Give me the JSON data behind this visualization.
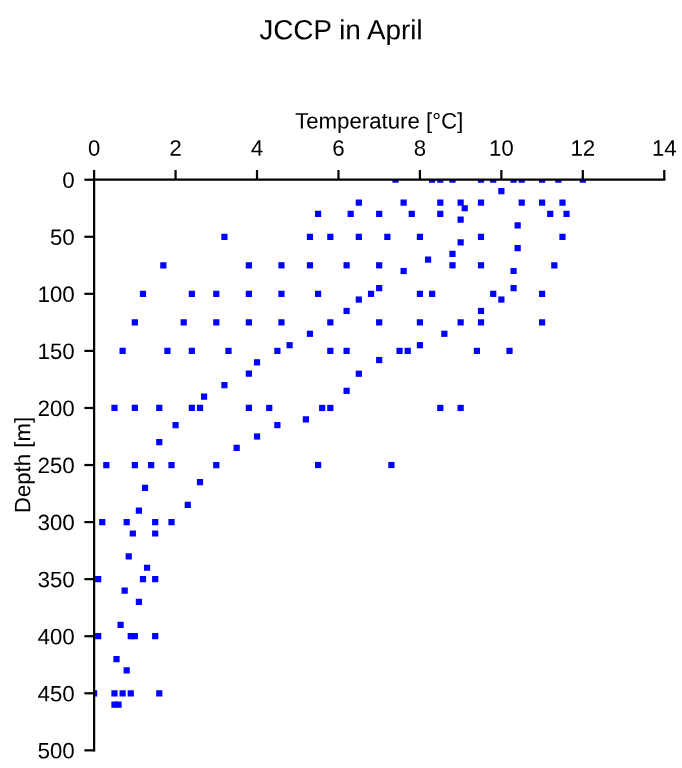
{
  "chart_data": {
    "type": "scatter",
    "title": "JCCP in April",
    "xlabel": "Temperature [°C]",
    "ylabel": "Depth [m]",
    "xlim": [
      0,
      14
    ],
    "xticks": [
      0,
      2,
      4,
      6,
      8,
      10,
      12,
      14
    ],
    "ylim": [
      500,
      0
    ],
    "yticks": [
      0,
      50,
      100,
      150,
      200,
      250,
      300,
      350,
      400,
      450,
      500
    ],
    "grid": false,
    "marker": "square",
    "series": [
      {
        "color": "#0000ff",
        "x": [
          10.3,
          10.0,
          9.5,
          9.1,
          9.0,
          9.0,
          8.8,
          8.2,
          7.6,
          7.0,
          6.5,
          6.2,
          5.8,
          5.3,
          4.8,
          4.5,
          4.0,
          3.8,
          3.2,
          2.7,
          2.4,
          2.0,
          1.6,
          1.4,
          1.25,
          1.1,
          0.95,
          0.85,
          0.75,
          0.65,
          0.55,
          0.5,
          0.5
        ],
        "values": [
          0,
          10,
          20,
          25,
          35,
          55,
          65,
          70,
          80,
          95,
          105,
          115,
          125,
          135,
          145,
          150,
          160,
          170,
          180,
          190,
          200,
          215,
          230,
          250,
          270,
          290,
          310,
          330,
          360,
          390,
          420,
          450,
          460
        ]
      },
      {
        "color": "#0000ff",
        "x": [
          10.5,
          10.5,
          10.4,
          10.4,
          10.3,
          10.3,
          10.0,
          9.5,
          9.0,
          8.6,
          8.0,
          7.5,
          7.0,
          6.5,
          6.2,
          5.8,
          5.2,
          4.5,
          4.0,
          3.5,
          3.0,
          2.6,
          2.3,
          1.9,
          1.5,
          1.3,
          1.1,
          1.0,
          0.8,
          0.7,
          0.6
        ],
        "values": [
          0,
          20,
          40,
          60,
          80,
          95,
          105,
          115,
          125,
          135,
          145,
          150,
          158,
          170,
          185,
          200,
          210,
          215,
          225,
          235,
          250,
          265,
          285,
          300,
          310,
          340,
          370,
          400,
          430,
          450,
          460
        ]
      },
      {
        "color": "#0000ff",
        "x": [
          7.4,
          8.3,
          8.5,
          8.8,
          9.5,
          9.8,
          11.0,
          11.4,
          12.0,
          6.5,
          7.6,
          8.5,
          9.0,
          11.0,
          11.5,
          5.5,
          6.3,
          7.0,
          7.8,
          8.5,
          11.2,
          11.6,
          3.2,
          5.3,
          5.8,
          6.5,
          7.2,
          8.0,
          9.5,
          11.5,
          1.7,
          3.8,
          4.6,
          5.3,
          6.2,
          7.0,
          8.8,
          9.5,
          11.3,
          1.2,
          2.4,
          3.0,
          3.8,
          4.6,
          5.5,
          6.8,
          8.0,
          8.3,
          9.8,
          11.0,
          1.0,
          2.2,
          3.0,
          3.8,
          4.6,
          7.0,
          8.0,
          9.5,
          11.0,
          0.7,
          1.8,
          2.4,
          3.3,
          5.8,
          6.2,
          7.7,
          9.4,
          10.2,
          0.5,
          1.0,
          1.6,
          2.6,
          3.8,
          4.3,
          5.6,
          8.5,
          9.0,
          0.3,
          1.0,
          1.9,
          5.5,
          7.3,
          0.2,
          0.8,
          1.5,
          0.1,
          1.2,
          1.5,
          0.1,
          0.9,
          1.5,
          0.0,
          0.9,
          1.6
        ],
        "values": [
          0,
          0,
          0,
          0,
          0,
          0,
          0,
          0,
          0,
          20,
          20,
          20,
          20,
          20,
          20,
          30,
          30,
          30,
          30,
          30,
          30,
          30,
          50,
          50,
          50,
          50,
          50,
          50,
          50,
          50,
          75,
          75,
          75,
          75,
          75,
          75,
          75,
          75,
          75,
          100,
          100,
          100,
          100,
          100,
          100,
          100,
          100,
          100,
          100,
          100,
          125,
          125,
          125,
          125,
          125,
          125,
          125,
          125,
          125,
          150,
          150,
          150,
          150,
          150,
          150,
          150,
          150,
          150,
          200,
          200,
          200,
          200,
          200,
          200,
          200,
          200,
          200,
          250,
          250,
          250,
          250,
          250,
          300,
          300,
          300,
          350,
          350,
          350,
          400,
          400,
          400,
          450,
          450,
          450
        ]
      }
    ]
  }
}
